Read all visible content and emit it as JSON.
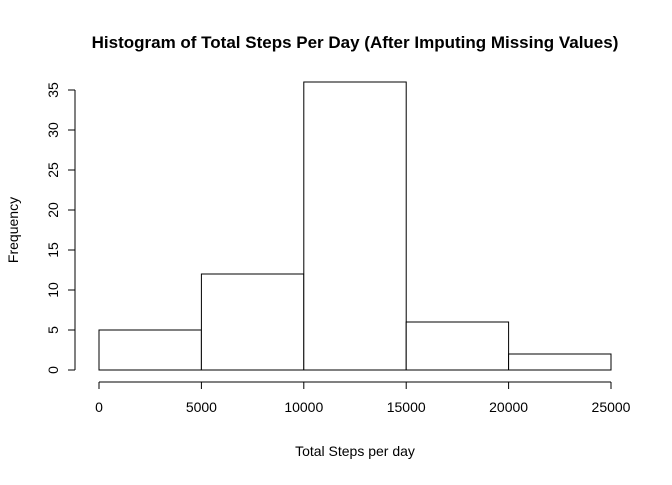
{
  "chart_data": {
    "type": "bar",
    "title": "Histogram of Total Steps Per Day (After Imputing Missing Values)",
    "xlabel": "Total Steps per day",
    "ylabel": "Frequency",
    "bins": [
      {
        "from": 0,
        "to": 5000,
        "count": 5
      },
      {
        "from": 5000,
        "to": 10000,
        "count": 12
      },
      {
        "from": 10000,
        "to": 15000,
        "count": 36
      },
      {
        "from": 15000,
        "to": 20000,
        "count": 6
      },
      {
        "from": 20000,
        "to": 25000,
        "count": 2
      }
    ],
    "xlim": [
      0,
      25000
    ],
    "ylim": [
      0,
      35
    ],
    "x_ticks": [
      0,
      5000,
      10000,
      15000,
      20000,
      25000
    ],
    "x_tick_labels": [
      "0",
      "5000",
      "10000",
      "15000",
      "20000",
      "25000"
    ],
    "y_ticks": [
      0,
      5,
      10,
      15,
      20,
      25,
      30,
      35
    ],
    "y_tick_labels": [
      "0",
      "5",
      "10",
      "15",
      "20",
      "25",
      "30",
      "35"
    ],
    "grid": false,
    "colors": {
      "fill": "#ffffff",
      "stroke": "#000000"
    }
  }
}
